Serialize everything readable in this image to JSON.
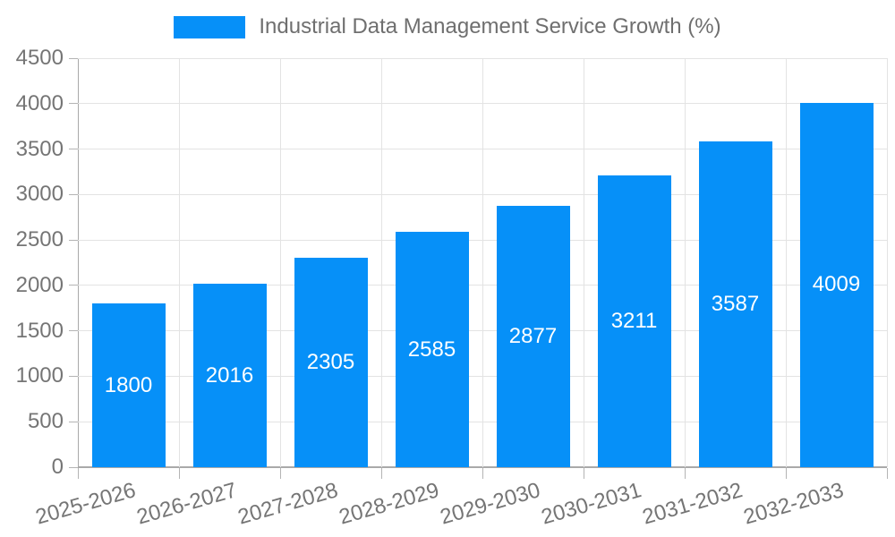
{
  "chart_data": {
    "type": "bar",
    "title": "Industrial Data Management Service Growth (%)",
    "legend": {
      "label": "Industrial Data Management Service Growth (%)",
      "position": "top-center"
    },
    "categories": [
      "2025-2026",
      "2026-2027",
      "2027-2028",
      "2028-2029",
      "2029-2030",
      "2030-2031",
      "2031-2032",
      "2032-2033"
    ],
    "values": [
      1800,
      2016,
      2305,
      2585,
      2877,
      3211,
      3587,
      4009
    ],
    "xlabel": "",
    "ylabel": "",
    "ylim": [
      0,
      4500
    ],
    "ytick_step": 500,
    "ytick_labels": [
      "0",
      "500",
      "1000",
      "1500",
      "2000",
      "2500",
      "3000",
      "3500",
      "4000",
      "4500"
    ],
    "grid": true,
    "bar_value_labels_inside": true,
    "colors": {
      "bar": "#0690f8",
      "bar_label_text": "#ffffff",
      "axis_line": "#a9a9a9",
      "tick_mark": "#b4b4b4",
      "grid_line": "#e3e3e3",
      "axis_text": "#757575",
      "legend_text": "#6f6f6f",
      "background": "#ffffff"
    }
  }
}
